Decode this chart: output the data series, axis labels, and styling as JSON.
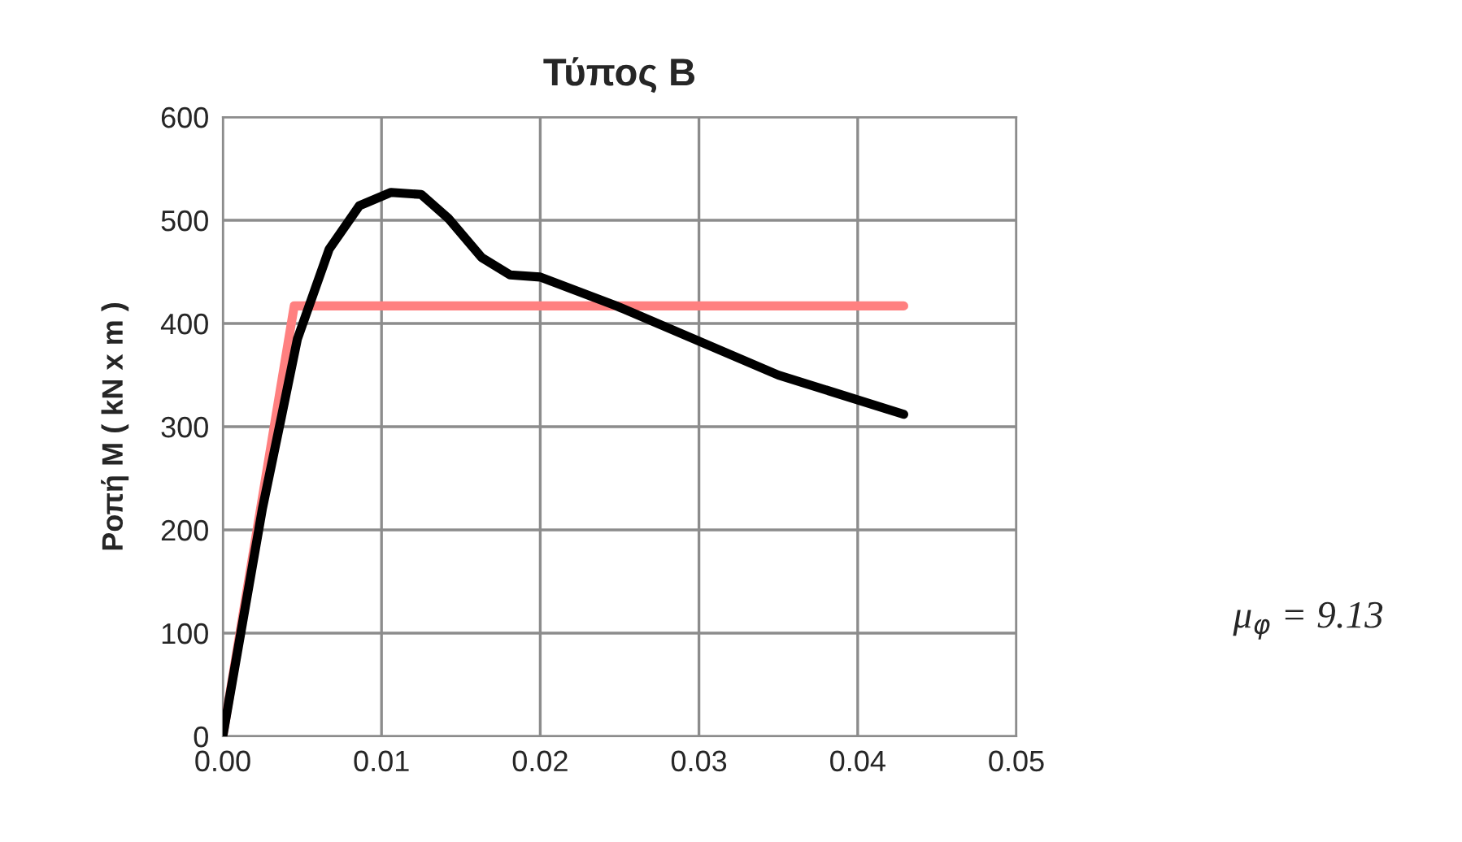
{
  "chart_data": {
    "type": "line",
    "title": "Τύπος Β",
    "ylabel": "Ροπή Μ ( kN x m )",
    "series": [
      {
        "color": "#ff8080",
        "x": [
          0,
          0.0045,
          0.0429
        ],
        "values": [
          0,
          417,
          417
        ]
      },
      {
        "color": "#000000",
        "x": [
          0,
          0.0025,
          0.0037,
          0.0047,
          0.0067,
          0.0086,
          0.0106,
          0.0125,
          0.0142,
          0.0163,
          0.0181,
          0.02,
          0.0248,
          0.035,
          0.0429
        ],
        "values": [
          0,
          221,
          310,
          385,
          472,
          514,
          527,
          525,
          502,
          464,
          447,
          445,
          417,
          350,
          312
        ]
      }
    ],
    "xlim": [
      0,
      0.05
    ],
    "xticks": [
      {
        "value": 0,
        "label": "0.00"
      },
      0.01,
      0.02,
      0.03,
      0.04,
      0.05
    ],
    "ylim": [
      0,
      600
    ],
    "yticks": [
      0,
      100,
      200,
      300,
      400,
      500,
      600
    ],
    "grid": true,
    "marker": "none",
    "line_style": "solid",
    "annotations": [
      "μ$_{φ}$ = 9.13"
    ]
  }
}
